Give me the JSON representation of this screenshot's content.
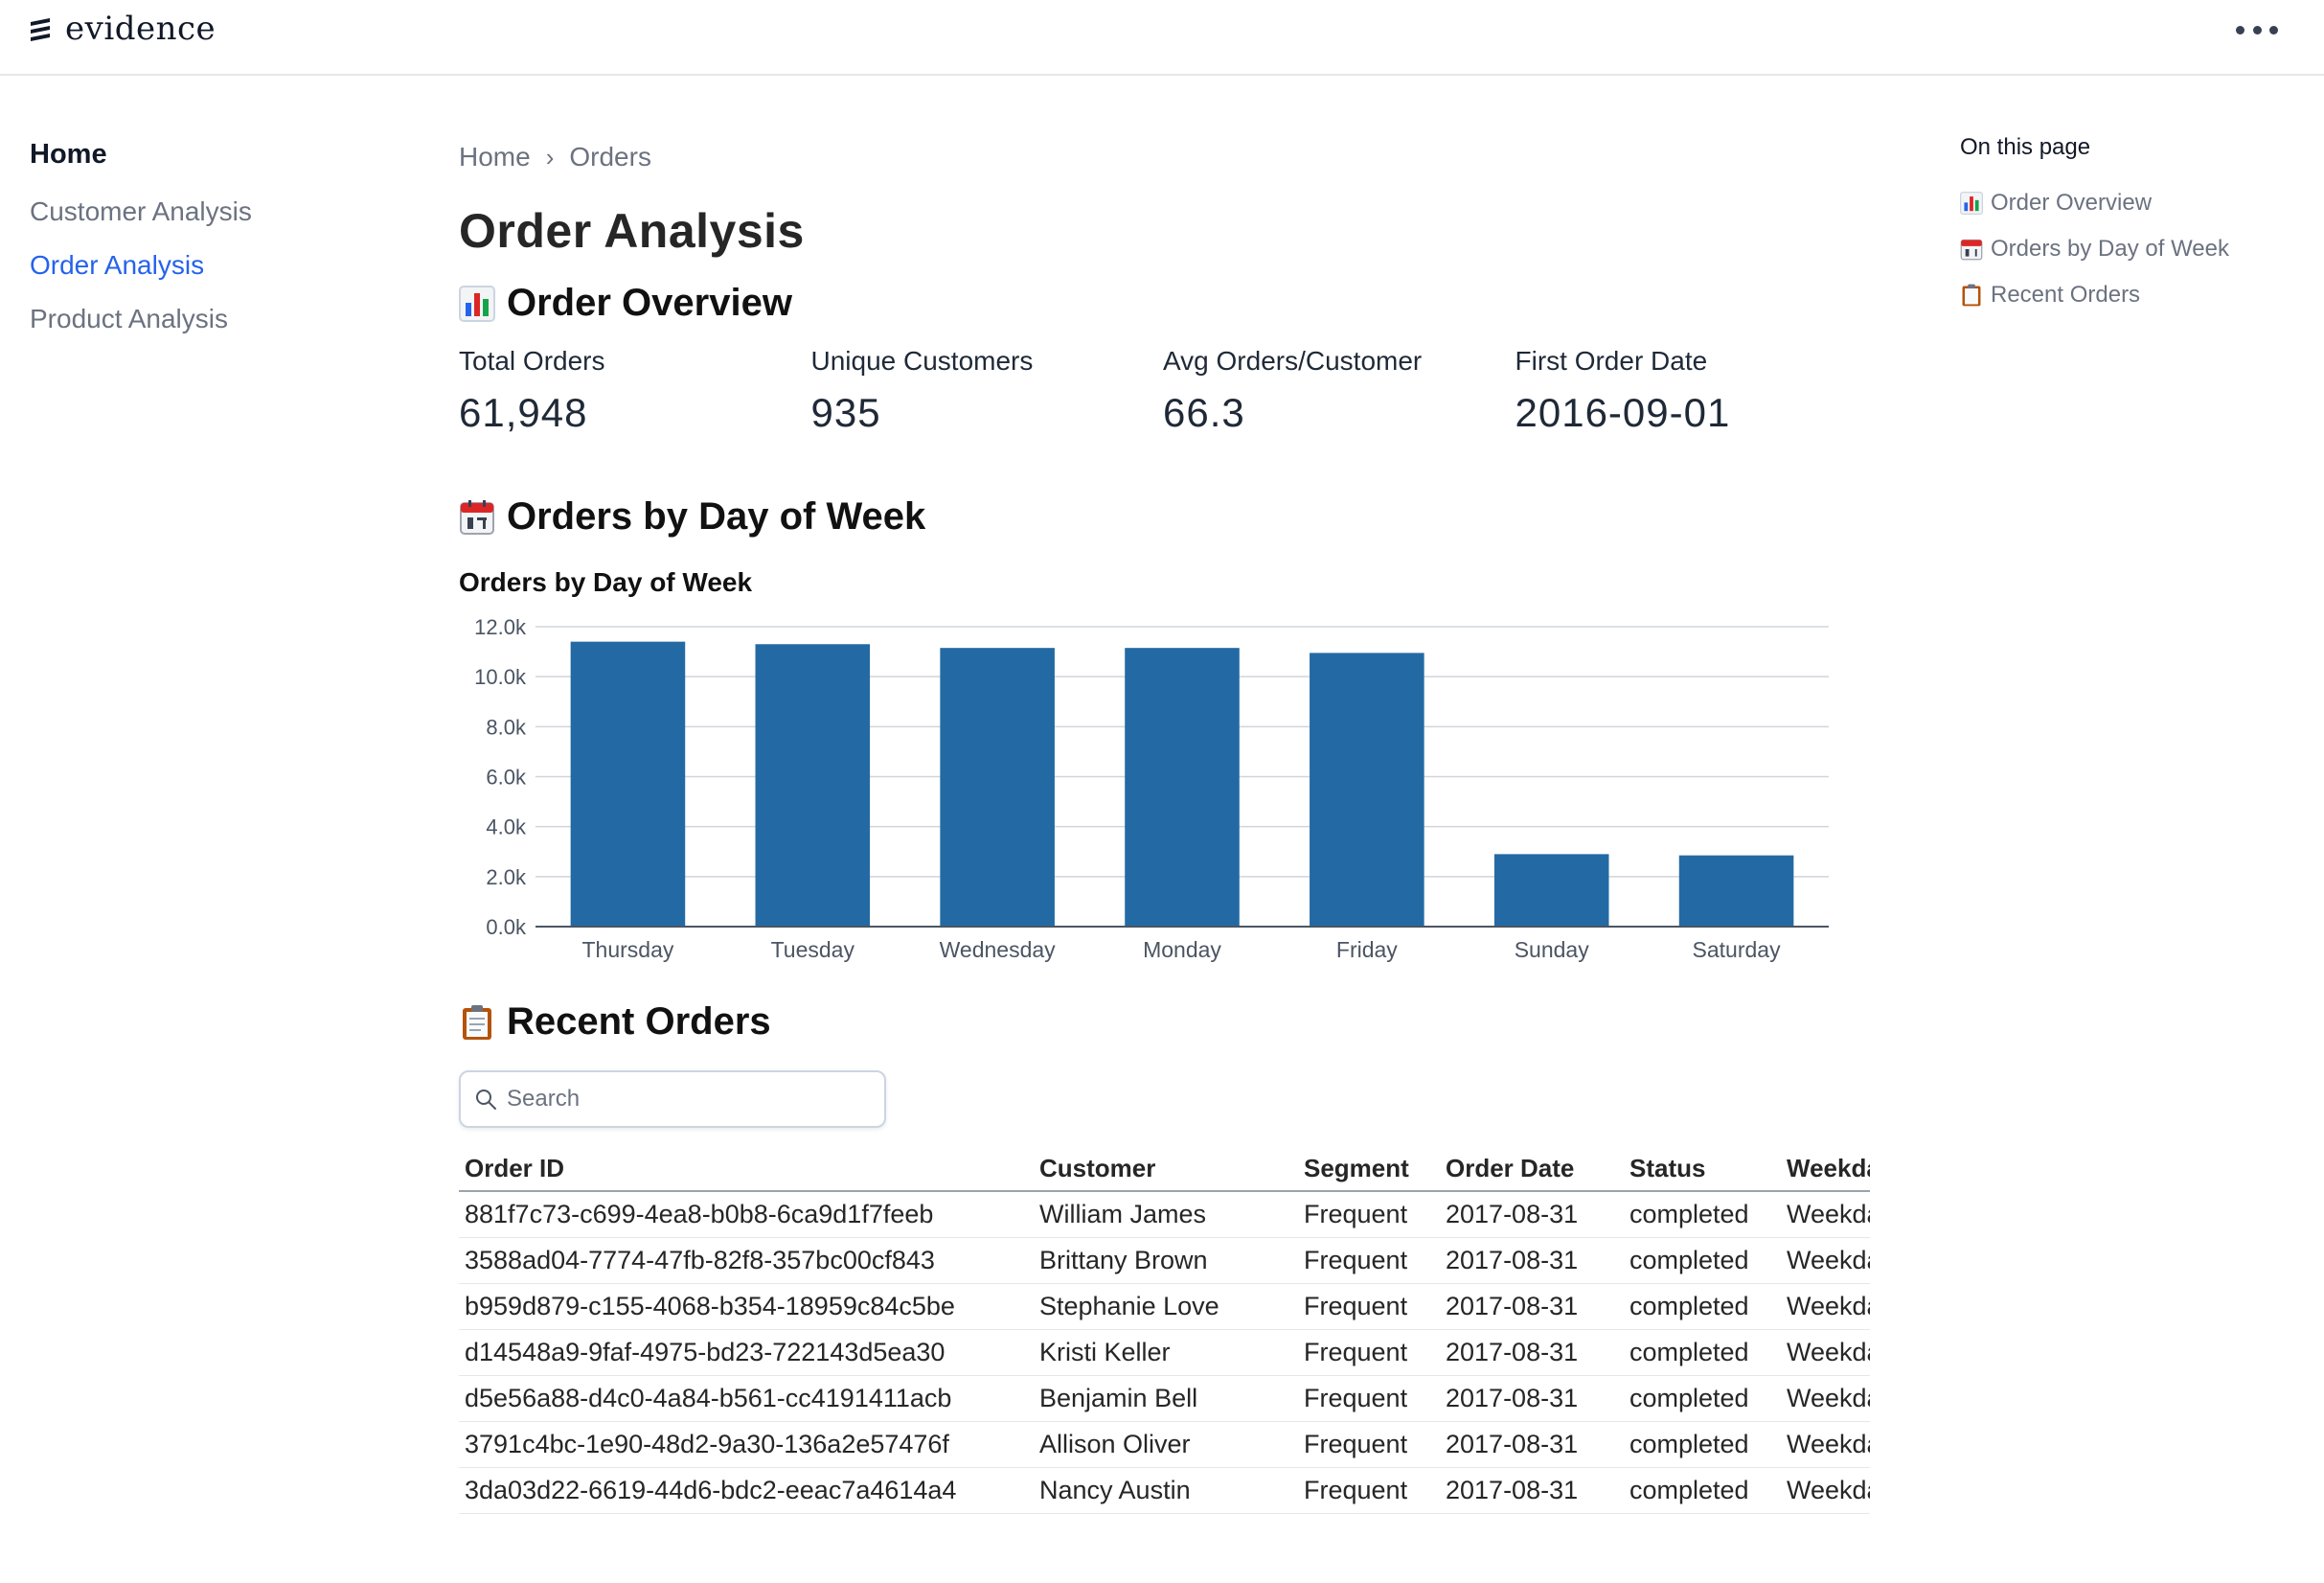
{
  "brand": {
    "name": "evidence"
  },
  "sidebar": {
    "home": "Home",
    "items": [
      {
        "label": "Customer Analysis",
        "active": false
      },
      {
        "label": "Order Analysis",
        "active": true
      },
      {
        "label": "Product Analysis",
        "active": false
      }
    ]
  },
  "breadcrumb": {
    "items": [
      "Home",
      "Orders"
    ],
    "separator": "›"
  },
  "page": {
    "title": "Order Analysis"
  },
  "sections": {
    "overview": {
      "title": "Order Overview",
      "icon": "bar-chart-emoji"
    },
    "dow": {
      "title": "Orders by Day of Week",
      "icon": "calendar-emoji"
    },
    "recent": {
      "title": "Recent Orders",
      "icon": "clipboard-emoji"
    }
  },
  "kpis": [
    {
      "label": "Total Orders",
      "value": "61,948"
    },
    {
      "label": "Unique Customers",
      "value": "935"
    },
    {
      "label": "Avg Orders/Customer",
      "value": "66.3"
    },
    {
      "label": "First Order Date",
      "value": "2016-09-01"
    }
  ],
  "chart_data": {
    "type": "bar",
    "title": "Orders by Day of Week",
    "categories": [
      "Thursday",
      "Tuesday",
      "Wednesday",
      "Monday",
      "Friday",
      "Sunday",
      "Saturday"
    ],
    "values": [
      11400,
      11300,
      11150,
      11150,
      10950,
      2900,
      2850
    ],
    "yticks": [
      "0.0k",
      "2.0k",
      "4.0k",
      "6.0k",
      "8.0k",
      "10.0k",
      "12.0k"
    ],
    "ylim": [
      0,
      12000
    ],
    "xlabel": "",
    "ylabel": "",
    "color": "#236aa4",
    "grid": true
  },
  "search": {
    "placeholder": "Search"
  },
  "table": {
    "columns": [
      "Order ID",
      "Customer",
      "Segment",
      "Order Date",
      "Status",
      "Weekday"
    ],
    "rows": [
      [
        "881f7c73-c699-4ea8-b0b8-6ca9d1f7feeb",
        "William James",
        "Frequent",
        "2017-08-31",
        "completed",
        "Weekday"
      ],
      [
        "3588ad04-7774-47fb-82f8-357bc00cf843",
        "Brittany Brown",
        "Frequent",
        "2017-08-31",
        "completed",
        "Weekday"
      ],
      [
        "b959d879-c155-4068-b354-18959c84c5be",
        "Stephanie Love",
        "Frequent",
        "2017-08-31",
        "completed",
        "Weekday"
      ],
      [
        "d14548a9-9faf-4975-bd23-722143d5ea30",
        "Kristi Keller",
        "Frequent",
        "2017-08-31",
        "completed",
        "Weekday"
      ],
      [
        "d5e56a88-d4c0-4a84-b561-cc4191411acb",
        "Benjamin Bell",
        "Frequent",
        "2017-08-31",
        "completed",
        "Weekday"
      ],
      [
        "3791c4bc-1e90-48d2-9a30-136a2e57476f",
        "Allison Oliver",
        "Frequent",
        "2017-08-31",
        "completed",
        "Weekday"
      ],
      [
        "3da03d22-6619-44d6-bdc2-eeac7a4614a4",
        "Nancy Austin",
        "Frequent",
        "2017-08-31",
        "completed",
        "Weekday"
      ]
    ]
  },
  "toc": {
    "title": "On this page",
    "items": [
      "Order Overview",
      "Orders by Day of Week",
      "Recent Orders"
    ]
  },
  "colors": {
    "accent": "#2563eb",
    "bar": "#236aa4",
    "muted": "#6b7280"
  }
}
